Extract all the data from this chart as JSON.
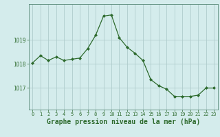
{
  "x": [
    0,
    1,
    2,
    3,
    4,
    5,
    6,
    7,
    8,
    9,
    10,
    11,
    12,
    13,
    14,
    15,
    16,
    17,
    18,
    19,
    20,
    21,
    22,
    23
  ],
  "y": [
    1018.05,
    1018.35,
    1018.15,
    1018.3,
    1018.15,
    1018.2,
    1018.25,
    1018.65,
    1019.2,
    1020.0,
    1020.05,
    1019.1,
    1018.7,
    1018.45,
    1018.15,
    1017.35,
    1017.1,
    1016.95,
    1016.65,
    1016.65,
    1016.65,
    1016.7,
    1017.0,
    1017.0
  ],
  "line_color": "#2d6a2d",
  "marker": "D",
  "marker_size": 2.0,
  "bg_color": "#d4ecec",
  "grid_color_major": "#b0cccc",
  "grid_color_minor": "#c8dede",
  "tick_color": "#2d6a2d",
  "xlabel": "Graphe pression niveau de la mer (hPa)",
  "xlabel_fontsize": 7.0,
  "ylabel_ticks": [
    1017,
    1018,
    1019
  ],
  "ylim": [
    1016.1,
    1020.5
  ],
  "xlim": [
    -0.5,
    23.5
  ],
  "xticks": [
    0,
    1,
    2,
    3,
    4,
    5,
    6,
    7,
    8,
    9,
    10,
    11,
    12,
    13,
    14,
    15,
    16,
    17,
    18,
    19,
    20,
    21,
    22,
    23
  ]
}
